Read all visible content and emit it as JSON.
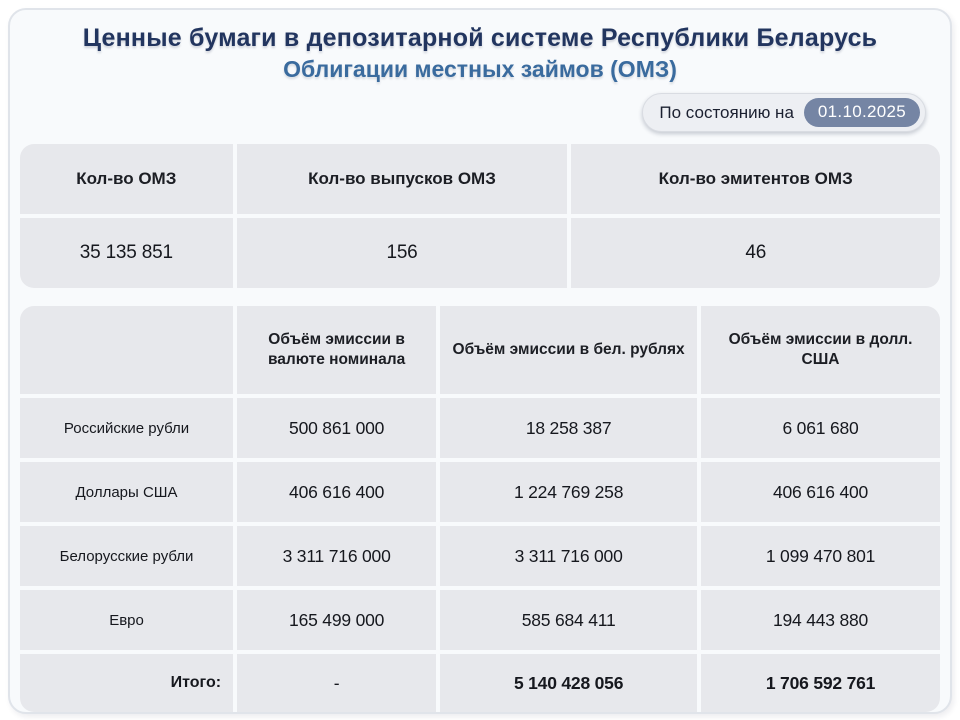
{
  "header": {
    "title_line1": "Ценные бумаги в депозитарной системе Республики Беларусь",
    "title_line2": "Облигации местных займов (ОМЗ)",
    "as_of_label": "По состоянию на",
    "as_of_date": "01.10.2025"
  },
  "summary_table": {
    "columns": [
      "Кол-во ОМЗ",
      "Кол-во выпусков ОМЗ",
      "Кол-во эмитентов ОМЗ"
    ],
    "values": [
      "35 135 851",
      "156",
      "46"
    ]
  },
  "emission_table": {
    "columns": [
      "",
      "Объём эмиссии в валюте номинала",
      "Объём эмиссии в бел. рублях",
      "Объём эмиссии в долл. США"
    ],
    "rows": [
      {
        "label": "Российские рубли",
        "nominal": "500 861 000",
        "byn": "18 258 387",
        "usd": "6 061 680"
      },
      {
        "label": "Доллары США",
        "nominal": "406 616 400",
        "byn": "1 224 769 258",
        "usd": "406 616 400"
      },
      {
        "label": "Белорусские рубли",
        "nominal": "3 311 716 000",
        "byn": "3 311 716 000",
        "usd": "1 099 470 801"
      },
      {
        "label": "Евро",
        "nominal": "165 499 000",
        "byn": "585 684 411",
        "usd": "194 443 880"
      }
    ],
    "total": {
      "label": "Итого:",
      "nominal": "-",
      "byn": "5 140 428 056",
      "usd": "1 706 592 761"
    }
  },
  "colors": {
    "title_primary": "#22355f",
    "title_secondary": "#3a6b9e",
    "date_chip_bg": "#7585a4",
    "cell_bg": "#e7e8ec",
    "card_bg": "#f8fafc",
    "card_border": "#e0e4ea",
    "text_dark": "#16181e"
  }
}
